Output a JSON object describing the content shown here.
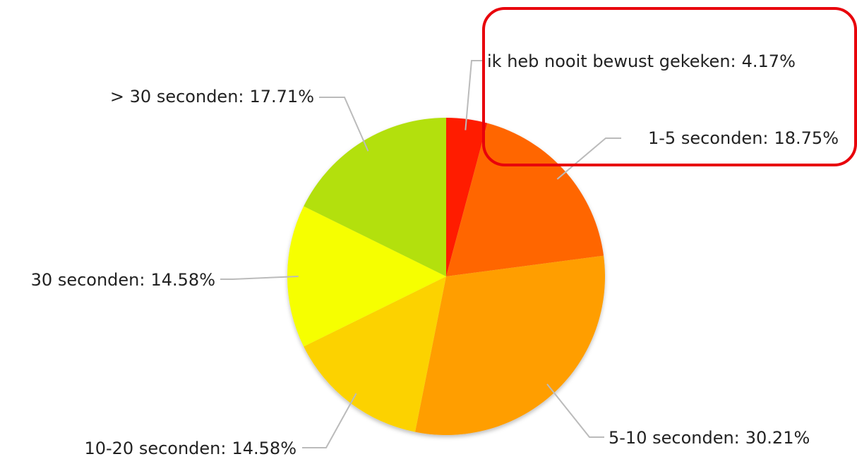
{
  "chart_data": {
    "type": "pie",
    "categories": [
      "ik heb nooit bewust gekeken:",
      "1-5 seconden:",
      "5-10 seconden:",
      "10-20 seconden:",
      "30 seconden:",
      "> 30 seconden:"
    ],
    "values": [
      4.17,
      18.75,
      30.21,
      14.58,
      14.58,
      17.71
    ],
    "value_labels": [
      "4.17%",
      "18.75%",
      "30.21%",
      "14.58%",
      "14.58%",
      "17.71%"
    ],
    "colors": [
      "#ff1a00",
      "#ff6600",
      "#ff9e00",
      "#fcd200",
      "#f6ff00",
      "#b3e00a"
    ]
  }
}
